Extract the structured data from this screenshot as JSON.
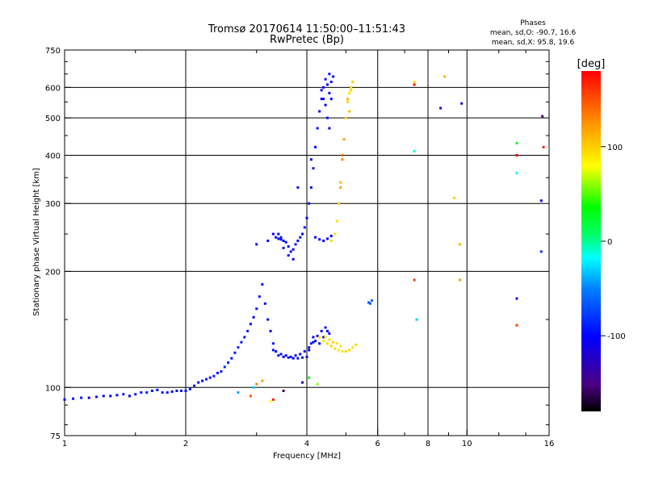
{
  "chart_data": {
    "type": "scatter",
    "title_line1": "Tromsø 20170614 11:50:00–11:51:43",
    "title_line2": "RwPretec (Bp)",
    "phases_title": "Phases",
    "phases_o": "mean, sd,O: -90.7, 16.6",
    "phases_x": "mean, sd,X:  95.8, 19.6",
    "xlabel": "Frequency [MHz]",
    "ylabel": "Stationary phase Virtual Height [km]",
    "xscale": "log",
    "yscale": "log",
    "xlim": [
      1,
      16
    ],
    "ylim": [
      75,
      750
    ],
    "x_ticks": [
      "1",
      "2",
      "4",
      "6",
      "8",
      "10",
      "16"
    ],
    "y_ticks": [
      "75",
      "100",
      "200",
      "300",
      "400",
      "500",
      "600",
      "750"
    ],
    "grid_x": [
      2,
      4,
      6,
      8,
      10
    ],
    "grid_y": [
      100,
      200,
      300,
      400,
      500,
      600
    ],
    "colorbar": {
      "label": "[deg]",
      "range": [
        -180,
        180
      ],
      "ticks": [
        "100",
        "0",
        "-100"
      ]
    },
    "series": [
      {
        "points": [
          [
            1.0,
            93,
            -100
          ],
          [
            1.05,
            93.5,
            -100
          ],
          [
            1.1,
            94,
            -95
          ],
          [
            1.15,
            94,
            -100
          ],
          [
            1.2,
            94.5,
            -95
          ],
          [
            1.25,
            95,
            -100
          ],
          [
            1.3,
            95,
            -105
          ],
          [
            1.35,
            95.5,
            -100
          ],
          [
            1.4,
            96,
            -95
          ],
          [
            1.45,
            95,
            -100
          ],
          [
            1.5,
            96,
            -95
          ],
          [
            1.55,
            97,
            -100
          ],
          [
            1.6,
            97,
            -90
          ],
          [
            1.65,
            98,
            -95
          ],
          [
            1.7,
            98.5,
            -100
          ],
          [
            1.75,
            97,
            -95
          ],
          [
            1.8,
            97,
            -100
          ],
          [
            1.85,
            97.5,
            -95
          ],
          [
            1.9,
            98,
            -100
          ],
          [
            1.95,
            98,
            -95
          ],
          [
            2.0,
            98,
            -100
          ],
          [
            2.05,
            99,
            -95
          ],
          [
            2.1,
            101,
            -90
          ],
          [
            2.15,
            103,
            -95
          ],
          [
            2.2,
            104,
            -100
          ],
          [
            2.25,
            105,
            -90
          ],
          [
            2.3,
            106,
            -95
          ],
          [
            2.35,
            107,
            -90
          ],
          [
            2.4,
            109,
            -95
          ],
          [
            2.45,
            110,
            -90
          ],
          [
            2.5,
            113,
            -85
          ],
          [
            2.55,
            116,
            -90
          ],
          [
            2.6,
            119,
            -95
          ],
          [
            2.65,
            123,
            -90
          ],
          [
            2.7,
            127,
            -85
          ],
          [
            2.75,
            131,
            -90
          ],
          [
            2.8,
            135,
            -95
          ],
          [
            2.85,
            140,
            -90
          ],
          [
            2.9,
            146,
            -95
          ],
          [
            2.95,
            152,
            -100
          ],
          [
            3.0,
            160,
            -95
          ],
          [
            3.05,
            172,
            -100
          ],
          [
            3.1,
            185,
            -95
          ],
          [
            3.15,
            165,
            -100
          ],
          [
            3.2,
            150,
            -95
          ],
          [
            3.25,
            140,
            -100
          ],
          [
            3.3,
            130,
            -95
          ],
          [
            3.35,
            124,
            -100
          ],
          [
            3.4,
            121,
            -95
          ],
          [
            3.5,
            120,
            -100
          ],
          [
            3.6,
            119.5,
            -95
          ],
          [
            3.7,
            119,
            -100
          ],
          [
            3.8,
            119,
            -95
          ],
          [
            3.9,
            119.5,
            -100
          ],
          [
            4.0,
            120,
            -95
          ],
          [
            4.05,
            125,
            -100
          ],
          [
            4.1,
            130,
            -95
          ],
          [
            4.15,
            135,
            -100
          ],
          [
            4.2,
            132,
            -95
          ],
          [
            4.3,
            130,
            -100
          ],
          [
            4.4,
            135,
            -95
          ],
          [
            4.5,
            140,
            -100
          ],
          [
            3.3,
            125,
            -95
          ],
          [
            3.35,
            124,
            -90
          ],
          [
            3.45,
            122,
            -95
          ],
          [
            3.55,
            121,
            -100
          ],
          [
            3.65,
            120,
            -95
          ],
          [
            3.75,
            121,
            -100
          ],
          [
            3.85,
            122,
            -95
          ],
          [
            3.95,
            124,
            -100
          ],
          [
            4.05,
            127,
            -95
          ],
          [
            4.15,
            131,
            -100
          ],
          [
            4.25,
            136,
            -95
          ],
          [
            4.35,
            140,
            -100
          ],
          [
            4.45,
            143,
            -95
          ],
          [
            4.55,
            138,
            -100
          ],
          [
            3.3,
            250,
            -100
          ],
          [
            3.35,
            245,
            -95
          ],
          [
            3.4,
            243,
            -100
          ],
          [
            3.45,
            242,
            -95
          ],
          [
            3.5,
            240,
            -100
          ],
          [
            3.55,
            238,
            -95
          ],
          [
            3.6,
            232,
            -100
          ],
          [
            3.65,
            225,
            -95
          ],
          [
            3.7,
            228,
            -100
          ],
          [
            3.75,
            235,
            -95
          ],
          [
            3.8,
            240,
            -100
          ],
          [
            3.85,
            245,
            -95
          ],
          [
            3.9,
            250,
            -100
          ],
          [
            3.95,
            260,
            -95
          ],
          [
            4.0,
            275,
            -100
          ],
          [
            4.05,
            300,
            -95
          ],
          [
            4.1,
            330,
            -100
          ],
          [
            4.15,
            370,
            -95
          ],
          [
            4.2,
            420,
            -100
          ],
          [
            4.25,
            470,
            -95
          ],
          [
            4.3,
            520,
            -100
          ],
          [
            4.35,
            560,
            -95
          ],
          [
            4.4,
            600,
            -100
          ],
          [
            4.45,
            630,
            -95
          ],
          [
            4.5,
            610,
            -100
          ],
          [
            4.55,
            580,
            -95
          ],
          [
            4.6,
            560,
            -100
          ],
          [
            4.65,
            640,
            -95
          ],
          [
            4.2,
            245,
            -100
          ],
          [
            4.3,
            242,
            -95
          ],
          [
            4.4,
            240,
            -100
          ],
          [
            4.5,
            243,
            -95
          ],
          [
            4.6,
            247,
            -100
          ],
          [
            4.4,
            560,
            -95
          ],
          [
            4.45,
            540,
            -100
          ],
          [
            4.5,
            500,
            -95
          ],
          [
            4.55,
            470,
            -100
          ],
          [
            3.8,
            330,
            -95
          ],
          [
            4.1,
            390,
            -100
          ],
          [
            3.2,
            240,
            -95
          ],
          [
            3.0,
            235,
            -100
          ],
          [
            3.5,
            230,
            -95
          ],
          [
            3.6,
            220,
            -100
          ],
          [
            3.7,
            215,
            -95
          ],
          [
            3.4,
            250,
            -100
          ],
          [
            3.45,
            245,
            -95
          ],
          [
            4.35,
            590,
            -100
          ],
          [
            4.6,
            620,
            -95
          ],
          [
            4.55,
            650,
            -100
          ],
          [
            4.3,
            135,
            95
          ],
          [
            4.4,
            132,
            90
          ],
          [
            4.5,
            130,
            95
          ],
          [
            4.6,
            128,
            100
          ],
          [
            4.7,
            126,
            95
          ],
          [
            4.8,
            125,
            90
          ],
          [
            4.9,
            124,
            95
          ],
          [
            5.0,
            124,
            100
          ],
          [
            5.1,
            125,
            95
          ],
          [
            5.2,
            127,
            90
          ],
          [
            5.3,
            129,
            95
          ],
          [
            4.45,
            135,
            90
          ],
          [
            4.55,
            133,
            95
          ],
          [
            4.65,
            131,
            100
          ],
          [
            4.75,
            130,
            95
          ],
          [
            4.85,
            128,
            90
          ],
          [
            4.6,
            240,
            95
          ],
          [
            4.7,
            250,
            90
          ],
          [
            4.75,
            270,
            95
          ],
          [
            4.8,
            300,
            100
          ],
          [
            4.85,
            340,
            110
          ],
          [
            4.9,
            390,
            130
          ],
          [
            4.95,
            440,
            120
          ],
          [
            5.0,
            500,
            100
          ],
          [
            5.05,
            550,
            95
          ],
          [
            5.1,
            580,
            90
          ],
          [
            5.15,
            600,
            95
          ],
          [
            5.2,
            620,
            100
          ],
          [
            5.05,
            560,
            110
          ],
          [
            5.15,
            590,
            100
          ],
          [
            5.1,
            520,
            105
          ],
          [
            4.9,
            400,
            140
          ],
          [
            4.85,
            330,
            120
          ],
          [
            3.3,
            93,
            170
          ],
          [
            3.25,
            92,
            80
          ],
          [
            2.9,
            95,
            150
          ],
          [
            3.0,
            102,
            130
          ],
          [
            3.1,
            104,
            120
          ],
          [
            2.95,
            100,
            -30
          ],
          [
            3.5,
            98,
            -160
          ],
          [
            3.9,
            103,
            -120
          ],
          [
            4.25,
            102,
            60
          ],
          [
            4.05,
            106,
            30
          ],
          [
            2.7,
            97,
            -40
          ],
          [
            5.75,
            165,
            -60
          ],
          [
            5.8,
            168,
            -60
          ],
          [
            5.7,
            166,
            -70
          ],
          [
            7.4,
            190,
            160
          ],
          [
            7.4,
            410,
            -10
          ],
          [
            7.5,
            150,
            -30
          ],
          [
            7.4,
            610,
            180
          ],
          [
            7.4,
            620,
            90
          ],
          [
            8.6,
            530,
            -120
          ],
          [
            8.8,
            640,
            110
          ],
          [
            9.3,
            310,
            100
          ],
          [
            9.6,
            190,
            120
          ],
          [
            9.6,
            235,
            110
          ],
          [
            9.7,
            545,
            -130
          ],
          [
            13.3,
            170,
            -100
          ],
          [
            13.3,
            145,
            160
          ],
          [
            13.3,
            400,
            180
          ],
          [
            13.3,
            430,
            20
          ],
          [
            13.3,
            360,
            -20
          ],
          [
            15.3,
            225,
            -80
          ],
          [
            15.3,
            305,
            -110
          ],
          [
            15.4,
            505,
            -150
          ],
          [
            15.5,
            420,
            170
          ]
        ]
      }
    ]
  }
}
